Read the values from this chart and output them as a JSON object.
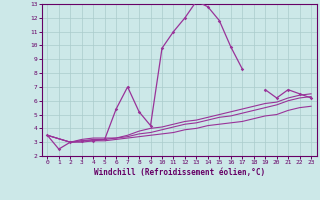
{
  "xlabel": "Windchill (Refroidissement éolien,°C)",
  "bg_color": "#cce8e8",
  "grid_color": "#aacccc",
  "line_color": "#993399",
  "xlim": [
    -0.5,
    23.5
  ],
  "ylim": [
    2,
    13
  ],
  "xticks": [
    0,
    1,
    2,
    3,
    4,
    5,
    6,
    7,
    8,
    9,
    10,
    11,
    12,
    13,
    14,
    15,
    16,
    17,
    18,
    19,
    20,
    21,
    22,
    23
  ],
  "yticks": [
    2,
    3,
    4,
    5,
    6,
    7,
    8,
    9,
    10,
    11,
    12,
    13
  ],
  "line_main": {
    "x": [
      0,
      1,
      2,
      3,
      4,
      5,
      6,
      7,
      8,
      9,
      10,
      11,
      12,
      13,
      14,
      15,
      16,
      17
    ],
    "y": [
      3.5,
      2.5,
      3.0,
      3.1,
      3.1,
      3.2,
      5.4,
      7.0,
      5.2,
      4.2,
      9.8,
      11.0,
      12.0,
      13.2,
      12.8,
      11.8,
      9.9,
      8.3
    ]
  },
  "line_upper": {
    "x": [
      0,
      2,
      3,
      4,
      5,
      6,
      7,
      8,
      9,
      10,
      11,
      12,
      13,
      14,
      15,
      16,
      17,
      18,
      19,
      20,
      21,
      22,
      23
    ],
    "y": [
      3.5,
      3.0,
      3.2,
      3.3,
      3.3,
      3.3,
      3.5,
      3.8,
      4.0,
      4.1,
      4.3,
      4.5,
      4.6,
      4.8,
      5.0,
      5.2,
      5.4,
      5.6,
      5.8,
      5.9,
      6.2,
      6.4,
      6.5
    ]
  },
  "line_mid": {
    "x": [
      0,
      2,
      3,
      4,
      5,
      6,
      7,
      8,
      9,
      10,
      11,
      12,
      13,
      14,
      15,
      16,
      17,
      18,
      19,
      20,
      21,
      22,
      23
    ],
    "y": [
      3.5,
      3.0,
      3.1,
      3.2,
      3.2,
      3.3,
      3.4,
      3.6,
      3.7,
      3.9,
      4.1,
      4.3,
      4.4,
      4.6,
      4.8,
      4.9,
      5.1,
      5.3,
      5.5,
      5.7,
      6.0,
      6.2,
      6.3
    ]
  },
  "line_lower": {
    "x": [
      0,
      2,
      3,
      4,
      5,
      6,
      7,
      8,
      9,
      10,
      11,
      12,
      13,
      14,
      15,
      16,
      17,
      18,
      19,
      20,
      21,
      22,
      23
    ],
    "y": [
      3.5,
      3.0,
      3.0,
      3.1,
      3.1,
      3.2,
      3.3,
      3.4,
      3.5,
      3.6,
      3.7,
      3.9,
      4.0,
      4.2,
      4.3,
      4.4,
      4.5,
      4.7,
      4.9,
      5.0,
      5.3,
      5.5,
      5.6
    ]
  },
  "line_right": {
    "x": [
      19,
      20,
      21,
      22,
      23
    ],
    "y": [
      6.8,
      6.2,
      6.8,
      6.5,
      6.2
    ]
  }
}
